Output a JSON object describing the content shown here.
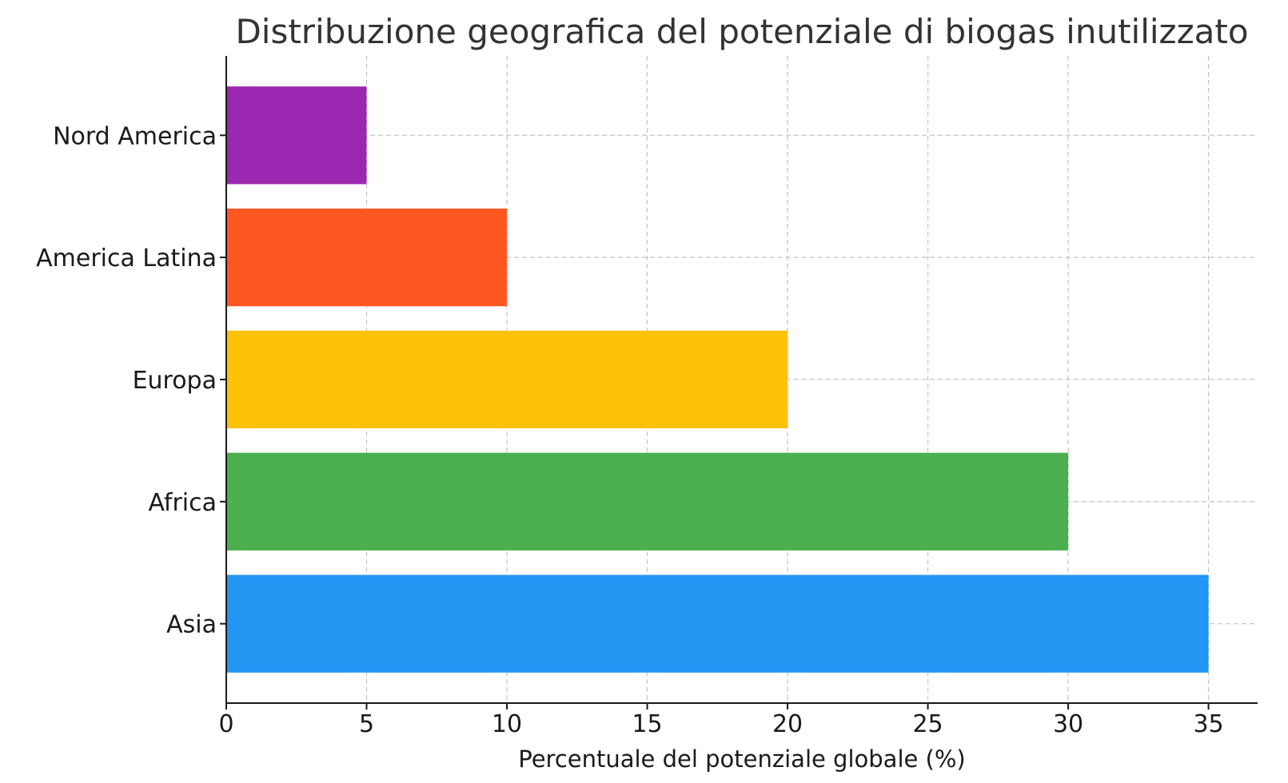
{
  "chart_data": {
    "type": "bar",
    "orientation": "horizontal",
    "title": "Distribuzione geografica del potenziale di biogas inutilizzato",
    "xlabel": "Percentuale del potenziale globale (%)",
    "ylabel": "",
    "categories": [
      "Asia",
      "Africa",
      "Europa",
      "America Latina",
      "Nord America"
    ],
    "values": [
      35,
      30,
      20,
      10,
      5
    ],
    "colors": [
      "#2196F3",
      "#4CAF50",
      "#FFC107",
      "#FF5722",
      "#9C27B0"
    ],
    "xlim": [
      0,
      36.75
    ],
    "xticks": [
      0,
      5,
      10,
      15,
      20,
      25,
      30,
      35
    ],
    "grid": true,
    "legend": "none"
  }
}
